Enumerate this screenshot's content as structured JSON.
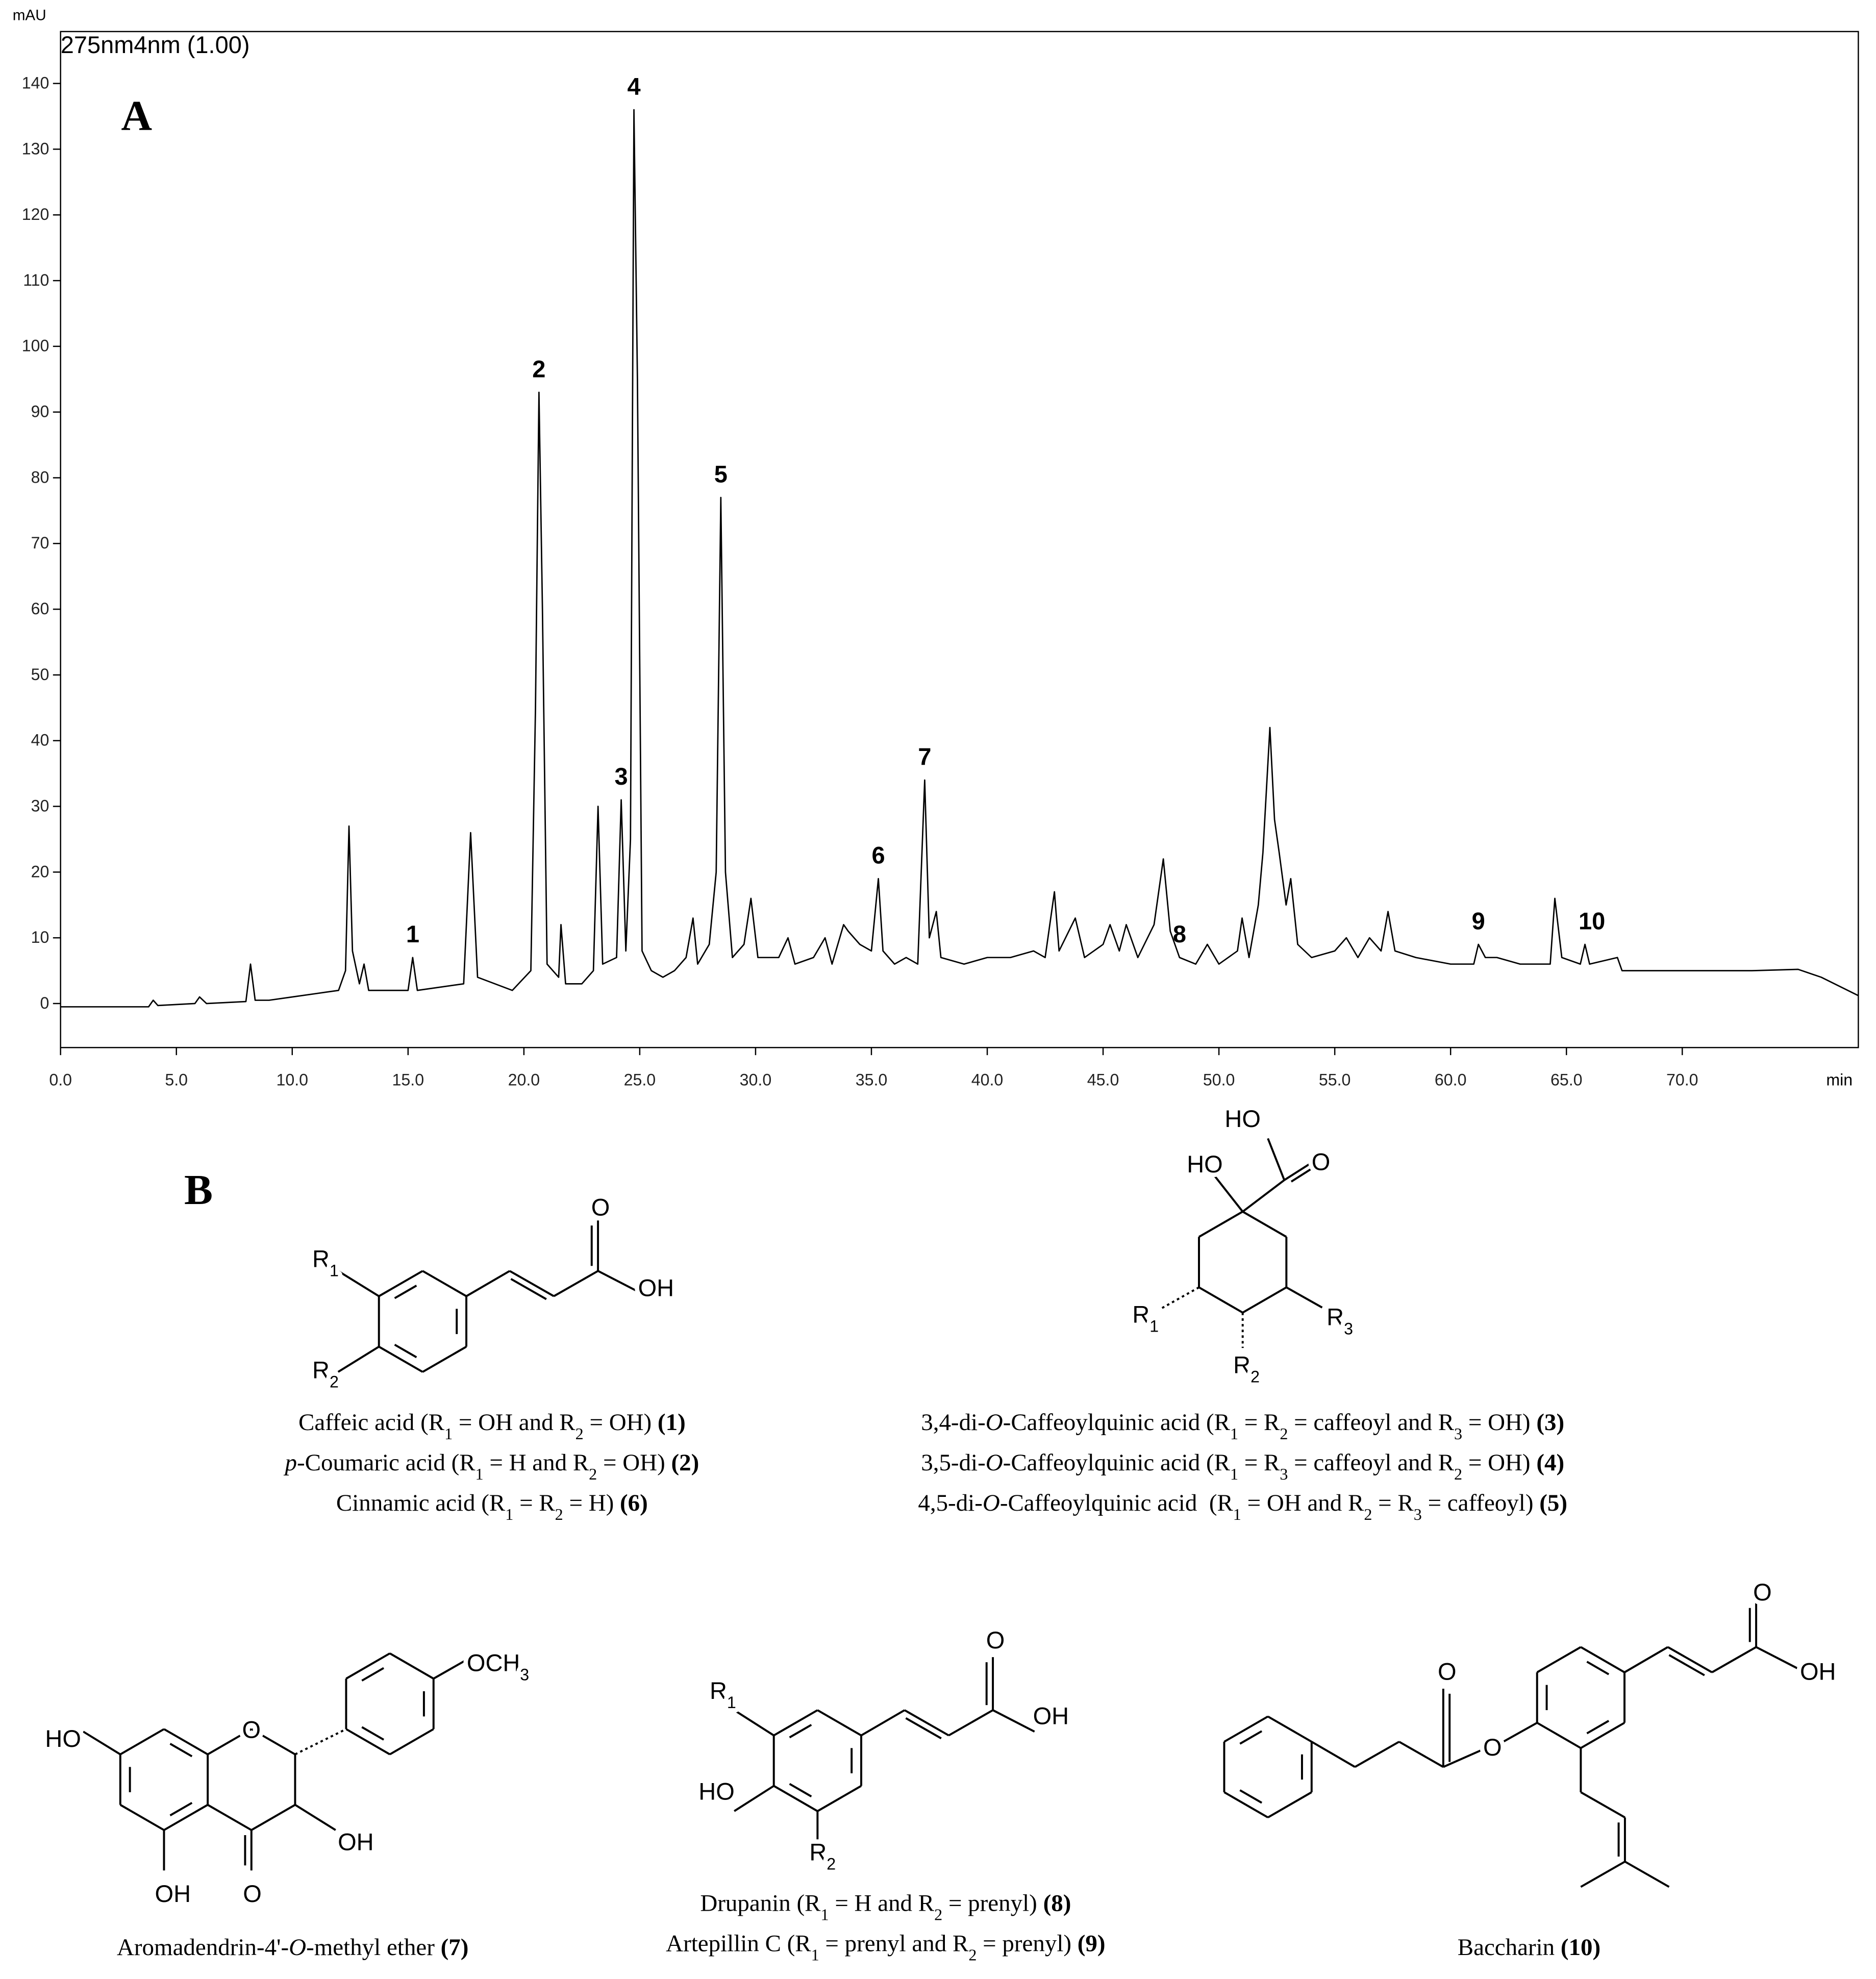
{
  "chart_data": {
    "type": "line",
    "panel_label": "A",
    "annotation": "275nm4nm (1.00)",
    "y_label": "mAU",
    "x_label": "min",
    "color": "#000000",
    "xlim": [
      0,
      77.6
    ],
    "ylim": [
      -6.7,
      147.9
    ],
    "xticks": [
      {
        "value": 0,
        "label": "0.0"
      },
      {
        "value": 5,
        "label": "5.0"
      },
      {
        "value": 10,
        "label": "10.0"
      },
      {
        "value": 15,
        "label": "15.0"
      },
      {
        "value": 20,
        "label": "20.0"
      },
      {
        "value": 25,
        "label": "25.0"
      },
      {
        "value": 30,
        "label": "30.0"
      },
      {
        "value": 35,
        "label": "35.0"
      },
      {
        "value": 40,
        "label": "40.0"
      },
      {
        "value": 45,
        "label": "45.0"
      },
      {
        "value": 50,
        "label": "50.0"
      },
      {
        "value": 55,
        "label": "55.0"
      },
      {
        "value": 60,
        "label": "60.0"
      },
      {
        "value": 65,
        "label": "65.0"
      },
      {
        "value": 70,
        "label": "70.0"
      }
    ],
    "yticks": [
      0,
      10,
      20,
      30,
      40,
      50,
      60,
      70,
      80,
      90,
      100,
      110,
      120,
      130,
      140
    ],
    "x": [
      0,
      3.8,
      4,
      4.2,
      5.8,
      6,
      6.3,
      8,
      8.2,
      8.4,
      9,
      10,
      11,
      12,
      12.3,
      12.45,
      12.6,
      12.9,
      13.1,
      13.3,
      15,
      15.2,
      15.4,
      17.4,
      17.7,
      18,
      19.5,
      20.3,
      20.5,
      20.65,
      20.8,
      21,
      21.5,
      21.6,
      21.8,
      22.5,
      23,
      23.2,
      23.4,
      24,
      24.2,
      24.4,
      24.6,
      24.75,
      24.9,
      25.1,
      25.5,
      26,
      26.5,
      27,
      27.3,
      27.5,
      28,
      28.3,
      28.5,
      28.7,
      29,
      29.5,
      29.8,
      30.1,
      31,
      31.4,
      31.7,
      32.5,
      33,
      33.3,
      33.8,
      34,
      34.5,
      35,
      35.3,
      35.5,
      36,
      36.5,
      37,
      37.3,
      37.5,
      37.8,
      38,
      39,
      40,
      41,
      42,
      42.5,
      42.9,
      43.1,
      43.8,
      44.2,
      45,
      45.3,
      45.7,
      46,
      46.5,
      47.2,
      47.6,
      47.9,
      48.3,
      49,
      49.5,
      50,
      50.8,
      51,
      51.3,
      51.7,
      51.9,
      52.2,
      52.4,
      52.6,
      52.9,
      53.1,
      53.4,
      54,
      55,
      55.5,
      56,
      56.5,
      57,
      57.3,
      57.6,
      58.5,
      60,
      61,
      61.2,
      61.5,
      62,
      63,
      64.3,
      64.5,
      64.8,
      65.6,
      65.8,
      66,
      67.2,
      67.4,
      70,
      73,
      75,
      76,
      77.6
    ],
    "values": [
      -0.5,
      -0.5,
      0.5,
      -0.3,
      0,
      1,
      0,
      0.3,
      6,
      0.5,
      0.5,
      1,
      1.5,
      2,
      5,
      27,
      8,
      3,
      6,
      2,
      2,
      7,
      2,
      3,
      26,
      4,
      2,
      5,
      45,
      93,
      60,
      6,
      4,
      12,
      3,
      3,
      5,
      30,
      6,
      7,
      31,
      8,
      25,
      136,
      95,
      8,
      5,
      4,
      5,
      7,
      13,
      6,
      9,
      20,
      77,
      20,
      7,
      9,
      16,
      7,
      7,
      10,
      6,
      7,
      10,
      6,
      12,
      11,
      9,
      8,
      19,
      8,
      6,
      7,
      6,
      34,
      10,
      14,
      7,
      6,
      7,
      7,
      8,
      7,
      17,
      8,
      13,
      7,
      9,
      12,
      8,
      12,
      7,
      12,
      22,
      11,
      7,
      6,
      9,
      6,
      8,
      13,
      7,
      15,
      23,
      42,
      28,
      23,
      15,
      19,
      9,
      7,
      8,
      10,
      7,
      10,
      8,
      14,
      8,
      7,
      6,
      6,
      9,
      7,
      7,
      6,
      6,
      16,
      7,
      6,
      9,
      6,
      7,
      5,
      5,
      5,
      5.2,
      4,
      1.2
    ],
    "peak_labels": [
      {
        "label": "1",
        "x": 15.2,
        "y": 7
      },
      {
        "label": "2",
        "x": 20.65,
        "y": 93
      },
      {
        "label": "3",
        "x": 24.2,
        "y": 31
      },
      {
        "label": "4",
        "x": 24.75,
        "y": 136
      },
      {
        "label": "5",
        "x": 28.5,
        "y": 77
      },
      {
        "label": "6",
        "x": 35.3,
        "y": 19
      },
      {
        "label": "7",
        "x": 37.3,
        "y": 34
      },
      {
        "label": "8",
        "x": 48.3,
        "y": 7
      },
      {
        "label": "9",
        "x": 61.2,
        "y": 9
      },
      {
        "label": "10",
        "x": 66.1,
        "y": 9
      }
    ]
  },
  "panel_b": {
    "label": "B",
    "structures": [
      {
        "atoms": [
          {
            "text": "R",
            "sub": "1"
          },
          {
            "text": "R",
            "sub": "2"
          },
          {
            "text": "O"
          },
          {
            "text": "OH"
          }
        ],
        "caption": [
          [
            {
              "text": "Caffeic acid (R"
            },
            {
              "text": "1",
              "style": "sub"
            },
            {
              "text": " = OH and R"
            },
            {
              "text": "2",
              "style": "sub"
            },
            {
              "text": " = OH) "
            },
            {
              "text": "(1)",
              "style": "bold"
            }
          ],
          [
            {
              "text": "p",
              "style": "italic"
            },
            {
              "text": "-Coumaric acid (R"
            },
            {
              "text": "1",
              "style": "sub"
            },
            {
              "text": " = H and R"
            },
            {
              "text": "2",
              "style": "sub"
            },
            {
              "text": " = OH) "
            },
            {
              "text": "(2)",
              "style": "bold"
            }
          ],
          [
            {
              "text": "Cinnamic acid (R"
            },
            {
              "text": "1",
              "style": "sub"
            },
            {
              "text": " = R"
            },
            {
              "text": "2",
              "style": "sub"
            },
            {
              "text": " = H) "
            },
            {
              "text": "(6)",
              "style": "bold"
            }
          ]
        ]
      },
      {
        "atoms": [
          {
            "text": "HO"
          },
          {
            "text": "O"
          },
          {
            "text": "HO"
          },
          {
            "text": "R",
            "sub": "1"
          },
          {
            "text": "R",
            "sub": "3"
          },
          {
            "text": "R",
            "sub": "2"
          }
        ],
        "caption": [
          [
            {
              "text": "3,4-di-"
            },
            {
              "text": "O",
              "style": "italic"
            },
            {
              "text": "-Caffeoylquinic acid (R"
            },
            {
              "text": "1",
              "style": "sub"
            },
            {
              "text": " = R"
            },
            {
              "text": "2",
              "style": "sub"
            },
            {
              "text": " = caffeoyl and R"
            },
            {
              "text": "3",
              "style": "sub"
            },
            {
              "text": " = OH) "
            },
            {
              "text": "(3)",
              "style": "bold"
            }
          ],
          [
            {
              "text": "3,5-di-"
            },
            {
              "text": "O",
              "style": "italic"
            },
            {
              "text": "-Caffeoylquinic acid (R"
            },
            {
              "text": "1",
              "style": "sub"
            },
            {
              "text": " = R"
            },
            {
              "text": "3",
              "style": "sub"
            },
            {
              "text": " = caffeoyl and R"
            },
            {
              "text": "2",
              "style": "sub"
            },
            {
              "text": " = OH) "
            },
            {
              "text": "(4)",
              "style": "bold"
            }
          ],
          [
            {
              "text": "4,5-di-"
            },
            {
              "text": "O",
              "style": "italic"
            },
            {
              "text": "-Caffeoylquinic acid  (R"
            },
            {
              "text": "1",
              "style": "sub"
            },
            {
              "text": " = OH and R"
            },
            {
              "text": "2",
              "style": "sub"
            },
            {
              "text": " = R"
            },
            {
              "text": "3",
              "style": "sub"
            },
            {
              "text": " = caffeoyl) "
            },
            {
              "text": "(5)",
              "style": "bold"
            }
          ]
        ]
      },
      {
        "atoms": [
          {
            "text": "HO"
          },
          {
            "text": "O"
          },
          {
            "text": "OCH",
            "sub": "3"
          },
          {
            "text": "OH"
          },
          {
            "text": "OH"
          },
          {
            "text": "O"
          }
        ],
        "caption": [
          [
            {
              "text": "Aromadendrin-4'-"
            },
            {
              "text": "O",
              "style": "italic"
            },
            {
              "text": "-methyl ether "
            },
            {
              "text": "(7)",
              "style": "bold"
            }
          ]
        ]
      },
      {
        "atoms": [
          {
            "text": "R",
            "sub": "1"
          },
          {
            "text": "O"
          },
          {
            "text": "OH"
          },
          {
            "text": "HO"
          },
          {
            "text": "R",
            "sub": "2"
          }
        ],
        "caption": [
          [
            {
              "text": "Drupanin (R"
            },
            {
              "text": "1",
              "style": "sub"
            },
            {
              "text": " = H and R"
            },
            {
              "text": "2",
              "style": "sub"
            },
            {
              "text": " = prenyl) "
            },
            {
              "text": "(8)",
              "style": "bold"
            }
          ],
          [
            {
              "text": "Artepillin C (R"
            },
            {
              "text": "1",
              "style": "sub"
            },
            {
              "text": " = prenyl and R"
            },
            {
              "text": "2",
              "style": "sub"
            },
            {
              "text": " = prenyl) "
            },
            {
              "text": "(9)",
              "style": "bold"
            }
          ]
        ]
      },
      {
        "atoms": [
          {
            "text": "O"
          },
          {
            "text": "O"
          },
          {
            "text": "O"
          },
          {
            "text": "OH"
          }
        ],
        "caption": [
          [
            {
              "text": "Baccharin "
            },
            {
              "text": "(10)",
              "style": "bold"
            }
          ]
        ]
      }
    ]
  }
}
